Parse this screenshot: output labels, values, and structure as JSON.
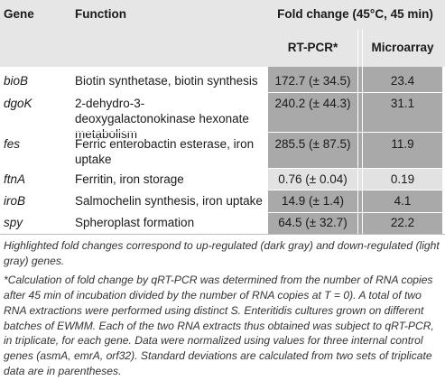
{
  "header": {
    "gene": "Gene",
    "function": "Function",
    "fold_change": "Fold change (45°C, 45 min)",
    "rt_pcr": "RT-PCR*",
    "microarray": "Microarray"
  },
  "rows": [
    {
      "gene": "bioB",
      "function": "Biotin synthetase, biotin synthesis",
      "rt_pcr": "172.7 (± 34.5)",
      "microarray": "23.4",
      "shade": "dark"
    },
    {
      "gene": "dgoK",
      "function": "2-dehydro-3-deoxygalactonokinase hexonate metabolism",
      "rt_pcr": "240.2 (± 44.3)",
      "microarray": "31.1",
      "shade": "dark"
    },
    {
      "gene": "fes",
      "function": "Ferric enterobactin esterase, iron uptake",
      "rt_pcr": "285.5 (± 87.5)",
      "microarray": "11.9",
      "shade": "dark"
    },
    {
      "gene": "ftnA",
      "function": "Ferritin, iron storage",
      "rt_pcr": "0.76 (± 0.04)",
      "microarray": "0.19",
      "shade": "light"
    },
    {
      "gene": "iroB",
      "function": "Salmochelin synthesis, iron uptake",
      "rt_pcr": "14.9 (± 1.4)",
      "microarray": "4.1",
      "shade": "dark"
    },
    {
      "gene": "spy",
      "function": "Spheroplast formation",
      "rt_pcr": "64.5 (± 32.7)",
      "microarray": "22.2",
      "shade": "dark"
    }
  ],
  "notes": {
    "highlight": "Highlighted fold changes correspond to up-regulated (dark gray) and down-regulated (light gray) genes.",
    "footnote": "*Calculation of fold change by qRT-PCR was determined from the number of RNA copies after 45 min of incubation divided by the number of RNA copies at T = 0). A total of two RNA extractions were performed using distinct S. Enteritidis cultures grown on different batches of EWMM. Each of the two RNA extracts thus obtained was subject to qRT-PCR, in triplicate, for each gene. Data were normalized using values for three internal control genes (asmA, emrA, orf32). Standard deviations are calculated from two sets of triplicate data are in parentheses."
  },
  "colors": {
    "header_bg": "#e6e6e6",
    "up_regulated": "#a9a9a9",
    "down_regulated": "#e2e2e2"
  }
}
